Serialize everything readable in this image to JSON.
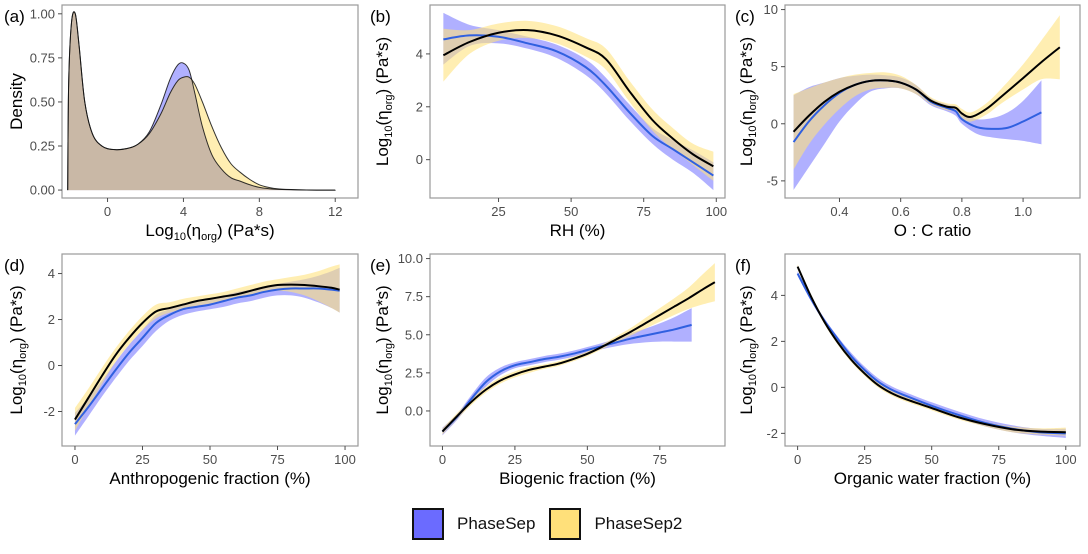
{
  "legend": {
    "items": [
      {
        "label": "PhaseSep",
        "color": "#6b6bff"
      },
      {
        "label": "PhaseSep2",
        "color": "#ffe07a"
      }
    ]
  },
  "colors": {
    "phasesep_band": "#6f6fff",
    "phasesep_line": "#3060e0",
    "phasesep2_band": "#ffe27f",
    "phasesep2_line": "#000000",
    "overlap": "#c9b8a6"
  },
  "chart_data": [
    {
      "id": "a",
      "tag": "(a)",
      "type": "area",
      "title": "",
      "xlabel": "Log10(ηorg) (Pa*s)",
      "ylabel": "Density",
      "xlim": [
        -2.4,
        13.2
      ],
      "ylim": [
        -0.045,
        1.05
      ],
      "xticks": [
        0,
        4,
        8,
        12
      ],
      "yticks": [
        0.0,
        0.25,
        0.5,
        0.75,
        1.0
      ],
      "ytick_labels": [
        "0.00",
        "0.25",
        "0.50",
        "0.75",
        "1.00"
      ],
      "series": [
        {
          "name": "PhaseSep",
          "x": [
            -2.1,
            -2.05,
            -1.9,
            -1.7,
            -1.5,
            -1.2,
            -0.8,
            -0.3,
            0.3,
            1.0,
            1.6,
            2.2,
            2.8,
            3.3,
            3.7,
            4.0,
            4.3,
            4.6,
            5.0,
            5.5,
            6.0,
            6.5,
            7.0,
            7.5,
            8.0,
            8.5,
            9.0,
            10.0,
            11.0,
            12.0
          ],
          "y": [
            0.0,
            0.6,
            0.95,
            1.0,
            0.82,
            0.5,
            0.32,
            0.25,
            0.23,
            0.235,
            0.26,
            0.33,
            0.48,
            0.63,
            0.71,
            0.72,
            0.68,
            0.55,
            0.36,
            0.2,
            0.12,
            0.07,
            0.05,
            0.03,
            0.015,
            0.008,
            0.004,
            0.001,
            0.0,
            0.0
          ]
        },
        {
          "name": "PhaseSep2",
          "x": [
            -2.1,
            -2.05,
            -1.9,
            -1.7,
            -1.5,
            -1.2,
            -0.8,
            -0.3,
            0.3,
            1.0,
            1.6,
            2.2,
            2.8,
            3.3,
            3.7,
            4.0,
            4.3,
            4.6,
            5.0,
            5.5,
            6.0,
            6.5,
            7.0,
            7.5,
            8.0,
            8.5,
            9.0,
            10.0,
            11.0,
            12.0
          ],
          "y": [
            0.0,
            0.6,
            0.95,
            1.0,
            0.82,
            0.5,
            0.32,
            0.25,
            0.23,
            0.235,
            0.26,
            0.32,
            0.43,
            0.55,
            0.62,
            0.64,
            0.64,
            0.6,
            0.5,
            0.36,
            0.24,
            0.15,
            0.1,
            0.06,
            0.03,
            0.015,
            0.007,
            0.002,
            0.0,
            0.0
          ]
        }
      ]
    },
    {
      "id": "b",
      "tag": "(b)",
      "type": "line",
      "xlabel": "RH (%)",
      "ylabel": "Log10(ηorg) (Pa*s)",
      "xlim": [
        1.4,
        103
      ],
      "ylim": [
        -1.45,
        5.85
      ],
      "xticks": [
        25,
        50,
        75,
        100
      ],
      "yticks": [
        0,
        2,
        4
      ],
      "series": [
        {
          "name": "PhaseSep",
          "x": [
            6,
            15,
            25,
            35,
            45,
            55,
            62,
            70,
            78,
            85,
            92,
            99
          ],
          "y": [
            4.55,
            4.7,
            4.65,
            4.4,
            4.1,
            3.5,
            2.8,
            1.8,
            0.9,
            0.4,
            -0.1,
            -0.6
          ],
          "lower": [
            3.6,
            4.3,
            4.4,
            4.2,
            3.85,
            3.2,
            2.5,
            1.5,
            0.6,
            0.0,
            -0.5,
            -1.15
          ],
          "upper": [
            5.55,
            5.1,
            4.9,
            4.65,
            4.35,
            3.8,
            3.1,
            2.1,
            1.2,
            0.75,
            0.35,
            -0.1
          ]
        },
        {
          "name": "PhaseSep2",
          "x": [
            6,
            15,
            25,
            35,
            45,
            55,
            62,
            70,
            78,
            85,
            92,
            99
          ],
          "y": [
            3.95,
            4.45,
            4.8,
            4.9,
            4.7,
            4.25,
            3.8,
            2.6,
            1.5,
            0.8,
            0.2,
            -0.25
          ],
          "lower": [
            2.95,
            4.0,
            4.5,
            4.6,
            4.4,
            3.9,
            3.4,
            2.2,
            1.1,
            0.4,
            -0.2,
            -0.8
          ],
          "upper": [
            4.95,
            4.9,
            5.15,
            5.25,
            5.05,
            4.6,
            4.2,
            3.0,
            1.9,
            1.2,
            0.6,
            0.3
          ]
        }
      ]
    },
    {
      "id": "c",
      "tag": "(c)",
      "type": "line",
      "xlabel": "O : C ratio",
      "ylabel": "Log10(ηorg) (Pa*s)",
      "xlim": [
        0.222,
        1.186
      ],
      "ylim": [
        -6.5,
        10.4
      ],
      "xticks": [
        0.4,
        0.6,
        0.8,
        1.0
      ],
      "xtick_labels": [
        "0.4",
        "0.6",
        "0.8",
        "1.0"
      ],
      "yticks": [
        -5,
        0,
        5,
        10
      ],
      "series": [
        {
          "name": "PhaseSep",
          "x": [
            0.25,
            0.3,
            0.35,
            0.4,
            0.45,
            0.5,
            0.55,
            0.6,
            0.65,
            0.7,
            0.75,
            0.78,
            0.8,
            0.85,
            0.9,
            0.95,
            1.0,
            1.06
          ],
          "y": [
            -1.6,
            0.2,
            1.6,
            2.7,
            3.4,
            3.75,
            3.8,
            3.6,
            3.0,
            1.9,
            1.4,
            1.1,
            0.4,
            -0.3,
            -0.45,
            -0.35,
            0.2,
            1.0
          ],
          "lower": [
            -5.8,
            -3.8,
            -1.8,
            0.2,
            1.7,
            2.8,
            3.1,
            3.1,
            2.6,
            1.6,
            1.1,
            0.7,
            0.0,
            -0.9,
            -1.2,
            -1.35,
            -1.5,
            -1.8
          ],
          "upper": [
            2.5,
            3.2,
            3.6,
            4.0,
            4.2,
            4.3,
            4.25,
            4.05,
            3.4,
            2.2,
            1.7,
            1.5,
            0.9,
            0.4,
            0.5,
            1.0,
            2.0,
            3.8
          ]
        },
        {
          "name": "PhaseSep2",
          "x": [
            0.25,
            0.3,
            0.35,
            0.4,
            0.45,
            0.5,
            0.55,
            0.6,
            0.65,
            0.7,
            0.75,
            0.78,
            0.8,
            0.83,
            0.88,
            0.93,
            1.0,
            1.06,
            1.12
          ],
          "y": [
            -0.7,
            0.7,
            1.9,
            2.8,
            3.4,
            3.75,
            3.8,
            3.6,
            3.0,
            2.0,
            1.5,
            1.4,
            0.9,
            0.6,
            1.3,
            2.4,
            4.0,
            5.4,
            6.7
          ],
          "lower": [
            -4.0,
            -1.8,
            -0.1,
            1.3,
            2.4,
            3.0,
            3.15,
            3.1,
            2.6,
            1.7,
            1.2,
            1.1,
            0.5,
            0.2,
            0.8,
            1.8,
            3.0,
            3.9,
            3.9
          ],
          "upper": [
            2.6,
            3.1,
            3.6,
            4.0,
            4.3,
            4.45,
            4.5,
            4.2,
            3.4,
            2.3,
            1.8,
            1.7,
            1.3,
            1.0,
            1.8,
            3.1,
            5.2,
            7.3,
            9.5
          ]
        }
      ]
    },
    {
      "id": "d",
      "tag": "(d)",
      "type": "line",
      "xlabel": "Anthropogenic fraction (%)",
      "ylabel": "Log10(ηorg) (Pa*s)",
      "xlim": [
        -4.8,
        104.8
      ],
      "ylim": [
        -3.5,
        4.85
      ],
      "xticks": [
        0,
        25,
        50,
        75,
        100
      ],
      "yticks": [
        -2,
        0,
        2,
        4
      ],
      "series": [
        {
          "name": "PhaseSep",
          "x": [
            0,
            5,
            10,
            15,
            20,
            25,
            30,
            35,
            40,
            45,
            50,
            55,
            60,
            65,
            70,
            75,
            80,
            85,
            90,
            95,
            98
          ],
          "y": [
            -2.55,
            -1.8,
            -1.0,
            -0.2,
            0.55,
            1.2,
            1.85,
            2.2,
            2.45,
            2.55,
            2.65,
            2.8,
            2.95,
            3.05,
            3.2,
            3.3,
            3.35,
            3.35,
            3.35,
            3.3,
            3.25
          ],
          "lower": [
            -3.05,
            -2.2,
            -1.35,
            -0.55,
            0.2,
            0.85,
            1.5,
            1.95,
            2.2,
            2.35,
            2.45,
            2.55,
            2.7,
            2.8,
            2.95,
            3.05,
            3.05,
            2.95,
            2.75,
            2.5,
            2.3
          ],
          "upper": [
            -2.05,
            -1.4,
            -0.65,
            0.15,
            0.9,
            1.55,
            2.2,
            2.45,
            2.7,
            2.75,
            2.85,
            3.05,
            3.2,
            3.3,
            3.45,
            3.55,
            3.65,
            3.75,
            3.9,
            4.1,
            4.25
          ]
        },
        {
          "name": "PhaseSep2",
          "x": [
            0,
            5,
            10,
            15,
            20,
            25,
            30,
            35,
            40,
            45,
            50,
            55,
            60,
            65,
            70,
            75,
            80,
            85,
            90,
            95,
            98
          ],
          "y": [
            -2.35,
            -1.4,
            -0.45,
            0.45,
            1.2,
            1.85,
            2.35,
            2.5,
            2.65,
            2.8,
            2.9,
            3.0,
            3.1,
            3.25,
            3.4,
            3.5,
            3.52,
            3.5,
            3.45,
            3.38,
            3.3
          ],
          "lower": [
            -2.85,
            -1.8,
            -0.8,
            0.15,
            0.9,
            1.55,
            2.05,
            2.3,
            2.45,
            2.6,
            2.7,
            2.8,
            2.9,
            3.05,
            3.2,
            3.25,
            3.2,
            3.05,
            2.8,
            2.5,
            2.3
          ],
          "upper": [
            -1.85,
            -1.0,
            -0.1,
            0.75,
            1.5,
            2.15,
            2.65,
            2.75,
            2.9,
            3.0,
            3.1,
            3.2,
            3.35,
            3.5,
            3.65,
            3.75,
            3.85,
            3.95,
            4.1,
            4.3,
            4.4
          ]
        }
      ]
    },
    {
      "id": "e",
      "tag": "(e)",
      "type": "line",
      "xlabel": "Biogenic fraction (%)",
      "ylabel": "Log10(ηorg) (Pa*s)",
      "xlim": [
        -4.3,
        97.5
      ],
      "ylim": [
        -2.3,
        10.3
      ],
      "xticks": [
        0,
        25,
        50,
        75
      ],
      "yticks": [
        0.0,
        2.5,
        5.0,
        7.5,
        10.0
      ],
      "ytick_labels": [
        "0.0",
        "2.5",
        "5.0",
        "7.5",
        "10.0"
      ],
      "series": [
        {
          "name": "PhaseSep",
          "x": [
            0,
            5,
            10,
            15,
            20,
            25,
            30,
            35,
            40,
            45,
            50,
            55,
            60,
            65,
            70,
            75,
            80,
            86
          ],
          "y": [
            -1.35,
            -0.4,
            0.8,
            1.9,
            2.6,
            3.0,
            3.2,
            3.4,
            3.55,
            3.75,
            4.0,
            4.25,
            4.5,
            4.75,
            4.95,
            5.15,
            5.35,
            5.65
          ],
          "lower": [
            -1.6,
            -0.6,
            0.55,
            1.6,
            2.35,
            2.8,
            3.0,
            3.2,
            3.35,
            3.55,
            3.8,
            4.05,
            4.25,
            4.4,
            4.5,
            4.55,
            4.55,
            4.55
          ],
          "upper": [
            -1.1,
            -0.2,
            1.05,
            2.2,
            2.85,
            3.2,
            3.4,
            3.6,
            3.75,
            3.95,
            4.2,
            4.45,
            4.75,
            5.1,
            5.4,
            5.75,
            6.15,
            6.75
          ]
        },
        {
          "name": "PhaseSep2",
          "x": [
            0,
            5,
            10,
            15,
            20,
            25,
            30,
            35,
            40,
            45,
            50,
            55,
            60,
            65,
            70,
            75,
            80,
            85,
            90,
            94
          ],
          "y": [
            -1.35,
            -0.35,
            0.6,
            1.4,
            2.0,
            2.4,
            2.7,
            2.9,
            3.1,
            3.4,
            3.75,
            4.2,
            4.7,
            5.2,
            5.75,
            6.3,
            6.85,
            7.4,
            8.0,
            8.45
          ],
          "lower": [
            -1.55,
            -0.55,
            0.4,
            1.2,
            1.8,
            2.2,
            2.5,
            2.75,
            2.95,
            3.25,
            3.6,
            4.05,
            4.5,
            4.95,
            5.4,
            5.85,
            6.3,
            6.7,
            7.0,
            7.2
          ],
          "upper": [
            -1.15,
            -0.15,
            0.8,
            1.6,
            2.2,
            2.6,
            2.9,
            3.05,
            3.25,
            3.55,
            3.9,
            4.35,
            4.9,
            5.45,
            6.1,
            6.75,
            7.4,
            8.1,
            9.0,
            9.7
          ]
        }
      ]
    },
    {
      "id": "f",
      "tag": "(f)",
      "type": "line",
      "xlabel": "Organic water fraction (%)",
      "ylabel": "Log10(ηorg) (Pa*s)",
      "xlim": [
        -4.7,
        105.3
      ],
      "ylim": [
        -2.55,
        5.8
      ],
      "xticks": [
        0,
        25,
        50,
        75,
        100
      ],
      "yticks": [
        -2,
        0,
        2,
        4
      ],
      "series": [
        {
          "name": "PhaseSep",
          "x": [
            0,
            5,
            10,
            15,
            20,
            25,
            30,
            35,
            40,
            50,
            60,
            70,
            80,
            90,
            100
          ],
          "y": [
            4.95,
            3.85,
            2.9,
            2.1,
            1.35,
            0.75,
            0.25,
            -0.1,
            -0.35,
            -0.8,
            -1.2,
            -1.55,
            -1.8,
            -1.95,
            -2.0
          ],
          "lower": [
            4.85,
            3.75,
            2.8,
            2.0,
            1.2,
            0.6,
            0.1,
            -0.25,
            -0.5,
            -0.95,
            -1.35,
            -1.7,
            -1.95,
            -2.1,
            -2.2
          ],
          "upper": [
            5.05,
            3.95,
            3.0,
            2.2,
            1.5,
            0.9,
            0.4,
            0.05,
            -0.2,
            -0.65,
            -1.05,
            -1.4,
            -1.65,
            -1.8,
            -1.8
          ]
        },
        {
          "name": "PhaseSep2",
          "x": [
            0,
            5,
            10,
            15,
            20,
            25,
            30,
            35,
            40,
            50,
            60,
            70,
            80,
            90,
            100
          ],
          "y": [
            5.25,
            3.95,
            2.85,
            1.95,
            1.2,
            0.6,
            0.1,
            -0.25,
            -0.5,
            -0.9,
            -1.3,
            -1.6,
            -1.82,
            -1.92,
            -1.95
          ],
          "lower": [
            5.15,
            3.85,
            2.75,
            1.85,
            1.1,
            0.5,
            0.0,
            -0.35,
            -0.6,
            -1.0,
            -1.4,
            -1.7,
            -1.95,
            -2.05,
            -2.1
          ],
          "upper": [
            5.35,
            4.05,
            2.95,
            2.05,
            1.3,
            0.7,
            0.2,
            -0.15,
            -0.4,
            -0.8,
            -1.2,
            -1.5,
            -1.7,
            -1.78,
            -1.75
          ]
        }
      ]
    }
  ]
}
